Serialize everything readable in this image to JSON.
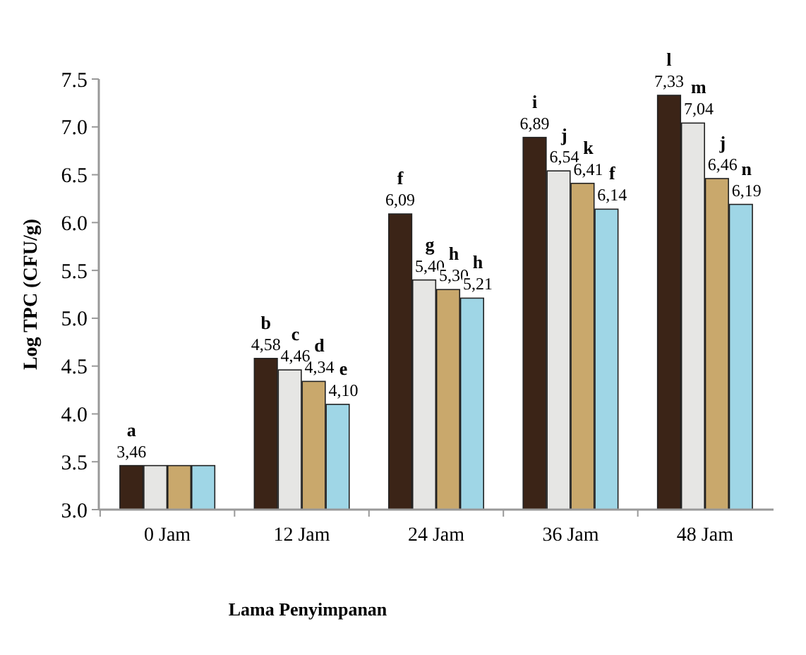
{
  "chart_data": {
    "type": "bar",
    "xlabel": "Lama Penyimpanan",
    "ylabel": "Log TPC (CFU/g)",
    "categories": [
      "0 Jam",
      "12 Jam",
      "24 Jam",
      "36 Jam",
      "48 Jam"
    ],
    "series": [
      {
        "color": "#3b2417",
        "values": [
          3.46,
          4.58,
          6.09,
          6.89,
          7.33
        ],
        "value_labels": [
          "3,46",
          "4,58",
          "6,09",
          "6,89",
          "7,33"
        ]
      },
      {
        "color": "#e6e6e4",
        "values": [
          3.46,
          4.46,
          5.4,
          6.54,
          7.04
        ],
        "value_labels": [
          null,
          "4,46",
          "5,40",
          "6,54",
          "7,04"
        ]
      },
      {
        "color": "#c9a86c",
        "values": [
          3.46,
          4.34,
          5.3,
          6.41,
          6.46
        ],
        "value_labels": [
          null,
          "4,34",
          "5,30",
          "6,41",
          "6,46"
        ]
      },
      {
        "color": "#9fd6e6",
        "values": [
          3.46,
          4.1,
          5.21,
          6.14,
          6.19
        ],
        "value_labels": [
          null,
          "4,10",
          "5,21",
          "6,14",
          "6,19"
        ]
      }
    ],
    "annotations": [
      "a",
      "b",
      "c",
      "d",
      "e",
      "f",
      "g",
      "h",
      "h",
      "i",
      "j",
      "k",
      "f",
      "l",
      "m",
      "j",
      "n"
    ],
    "ylim": [
      3.0,
      7.5
    ],
    "yticks": [
      {
        "value": 3.0,
        "label": "3.0"
      },
      {
        "value": 3.5,
        "label": "3.5"
      },
      {
        "value": 4.0,
        "label": "4.0"
      },
      {
        "value": 4.5,
        "label": "4.5"
      },
      {
        "value": 5.0,
        "label": "5.0"
      },
      {
        "value": 5.5,
        "label": "5.5"
      },
      {
        "value": 6.0,
        "label": "6.0"
      },
      {
        "value": 6.5,
        "label": "6.5"
      },
      {
        "value": 7.0,
        "label": "7.0"
      },
      {
        "value": 7.5,
        "label": "7.5"
      }
    ],
    "grid": false
  }
}
